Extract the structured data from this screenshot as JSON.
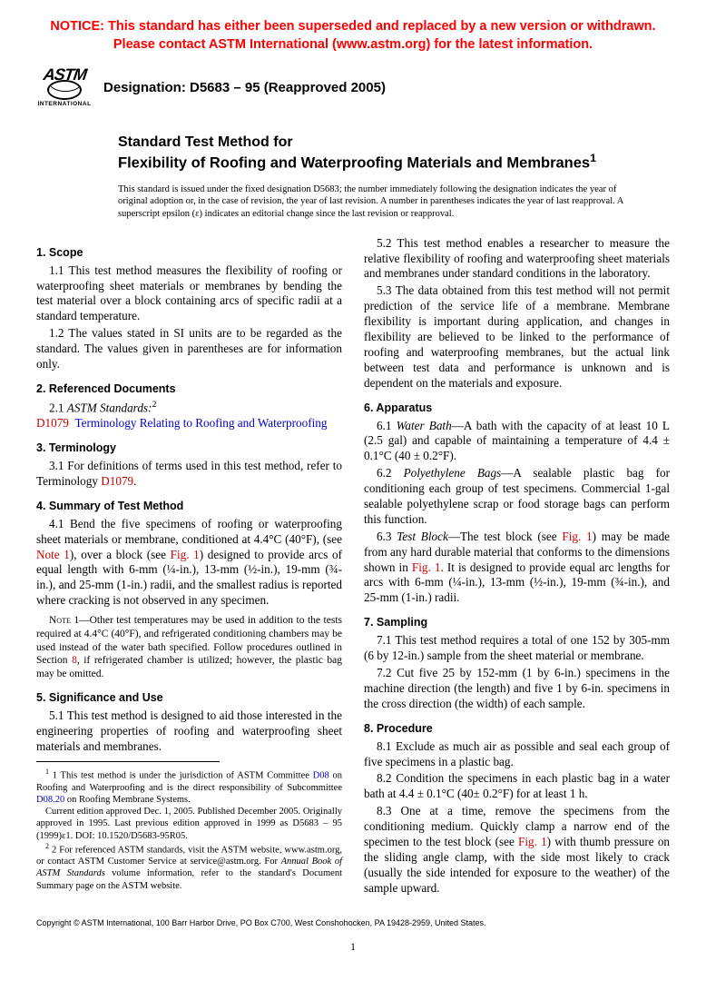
{
  "notice": {
    "line1": "NOTICE: This standard has either been superseded and replaced by a new version or withdrawn.",
    "line2": "Please contact ASTM International (www.astm.org) for the latest information."
  },
  "logo": {
    "top": "ASTM",
    "bottom": "INTERNATIONAL"
  },
  "designation": "Designation: D5683 – 95 (Reapproved 2005)",
  "title": {
    "prefix": "Standard Test Method for",
    "main": "Flexibility of Roofing and Waterproofing Materials and Membranes",
    "sup": "1"
  },
  "issuance": "This standard is issued under the fixed designation D5683; the number immediately following the designation indicates the year of original adoption or, in the case of revision, the year of last revision. A number in parentheses indicates the year of last reapproval. A superscript epsilon (ε) indicates an editorial change since the last revision or reapproval.",
  "sections": {
    "s1": "1. Scope",
    "s1_1": "1.1 This test method measures the flexibility of roofing or waterproofing sheet materials or membranes by bending the test material over a block containing arcs of specific radii at a standard temperature.",
    "s1_2": "1.2 The values stated in SI units are to be regarded as the standard. The values given in parentheses are for information only.",
    "s2": "2. Referenced Documents",
    "s2_1_pre": "2.1 ",
    "s2_1_ital": "ASTM Standards:",
    "s2_1_sup": "2",
    "s2_1_link_code": "D1079",
    "s2_1_link_text": "Terminology Relating to Roofing and Waterproofing",
    "s3": "3. Terminology",
    "s3_1_a": "3.1 For definitions of terms used in this test method, refer to Terminology ",
    "s3_1_link": "D1079",
    "s3_1_b": ".",
    "s4": "4. Summary of Test Method",
    "s4_1_a": "4.1 Bend the five specimens of roofing or waterproofing sheet materials or membrane, conditioned at 4.4°C (40°F), (see ",
    "s4_1_note": "Note 1",
    "s4_1_b": "), over a block (see ",
    "s4_1_fig": "Fig. 1",
    "s4_1_c": ") designed to provide arcs of equal length with 6-mm (¼-in.), 13-mm (½-in.), 19-mm (¾-in.), and 25-mm (1-in.) radii, and the smallest radius is reported where cracking is not observed in any specimen.",
    "note1_label": "Note 1—",
    "note1_a": "Other test temperatures may be used in addition to the tests required at 4.4°C (40°F), and refrigerated conditioning chambers may be used instead of the water bath specified. Follow procedures outlined in Section ",
    "note1_link": "8",
    "note1_b": ", if refrigerated chamber is utilized; however, the plastic bag may be omitted.",
    "s5": "5. Significance and Use",
    "s5_1": "5.1 This test method is designed to aid those interested in the engineering properties of roofing and waterproofing sheet materials and membranes.",
    "s5_2": "5.2 This test method enables a researcher to measure the relative flexibility of roofing and waterproofing sheet materials and membranes under standard conditions in the laboratory.",
    "s5_3": "5.3 The data obtained from this test method will not permit prediction of the service life of a membrane. Membrane flexibility is important during application, and changes in flexibility are believed to be linked to the performance of roofing and waterproofing membranes, but the actual link between test data and performance is unknown and is dependent on the materials and exposure.",
    "s6": "6. Apparatus",
    "s6_1_pre": "6.1 ",
    "s6_1_ital": "Water Bath",
    "s6_1_body": "—A bath with the capacity of at least 10 L (2.5 gal) and capable of maintaining a temperature of 4.4 ± 0.1°C (40 ± 0.2°F).",
    "s6_2_pre": "6.2 ",
    "s6_2_ital": "Polyethylene Bags",
    "s6_2_body": "—A sealable plastic bag for conditioning each group of test specimens. Commercial 1-gal sealable polyethylene scrap or food storage bags can perform this function.",
    "s6_3_pre": "6.3 ",
    "s6_3_ital": "Test Block",
    "s6_3_a": "—The test block (see ",
    "s6_3_fig1": "Fig. 1",
    "s6_3_b": ") may be made from any hard durable material that conforms to the dimensions shown in ",
    "s6_3_fig2": "Fig. 1",
    "s6_3_c": ". It is designed to provide equal arc lengths for arcs with 6-mm (¼-in.), 13-mm (½-in.), 19-mm (¾-in.), and 25-mm (1-in.) radii.",
    "s7": "7. Sampling",
    "s7_1": "7.1 This test method requires a total of one 152 by 305-mm (6 by 12-in.) sample from the sheet material or membrane.",
    "s7_2": "7.2 Cut five 25 by 152-mm (1 by 6-in.) specimens in the machine direction (the length) and five 1 by 6-in. specimens in the cross direction (the width) of each sample.",
    "s8": "8. Procedure",
    "s8_1": "8.1 Exclude as much air as possible and seal each group of five specimens in a plastic bag.",
    "s8_2": "8.2 Condition the specimens in each plastic bag in a water bath at 4.4 ± 0.1°C (40± 0.2°F) for at least 1 h.",
    "s8_3_a": "8.3 One at a time, remove the specimens from the conditioning medium. Quickly clamp a narrow end of the specimen to the test block (see ",
    "s8_3_fig": "Fig. 1",
    "s8_3_b": ") with thumb pressure on the sliding angle clamp, with the side most likely to crack (usually the side intended for exposure to the weather) of the sample upward."
  },
  "footnotes": {
    "f1_a": "1 This test method is under the jurisdiction of ASTM Committee ",
    "f1_link1": "D08",
    "f1_b": " on Roofing and Waterproofing and is the direct responsibility of Subcommittee ",
    "f1_link2": "D08.20",
    "f1_c": " on Roofing Membrane Systems.",
    "f1_d": "Current edition approved Dec. 1, 2005. Published December 2005. Originally approved in 1995. Last previous edition approved in 1999 as D5683 – 95 (1999)ε1. DOI: 10.1520/D5683-95R05.",
    "f2_a": "2 For referenced ASTM standards, visit the ASTM website, www.astm.org, or contact ASTM Customer Service at service@astm.org. For ",
    "f2_ital": "Annual Book of ASTM Standards",
    "f2_b": " volume information, refer to the standard's Document Summary page on the ASTM website."
  },
  "copyright": "Copyright © ASTM International, 100 Barr Harbor Drive, PO Box C700, West Conshohocken, PA 19428-2959, United States.",
  "pagenum": "1"
}
